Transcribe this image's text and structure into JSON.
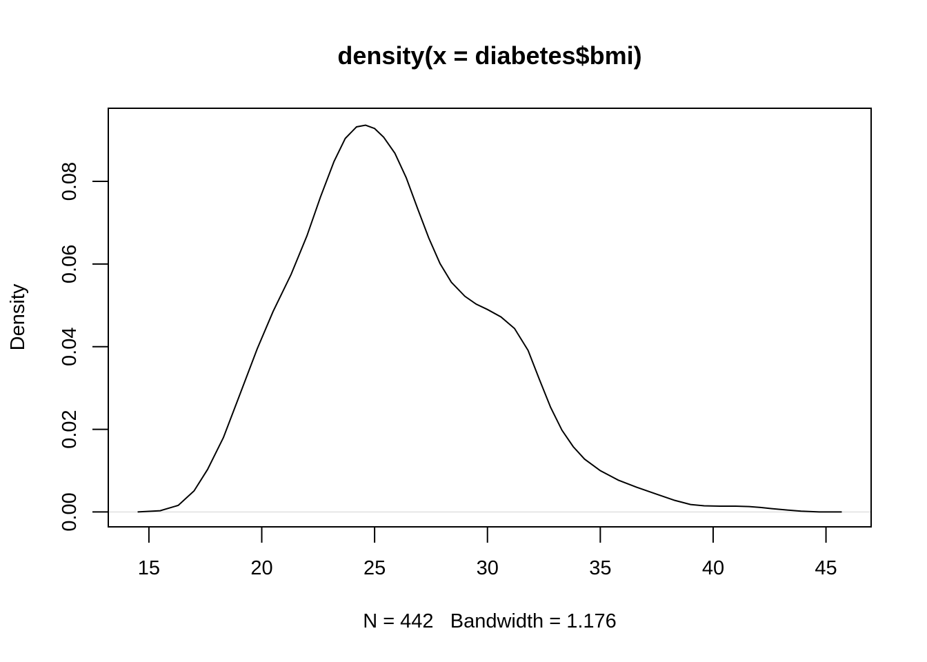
{
  "chart_data": {
    "type": "line",
    "title": "density(x = diabetes$bmi)",
    "xlabel": "N = 442   Bandwidth = 1.176",
    "ylabel": "Density",
    "xlim": [
      13.2,
      47.0
    ],
    "ylim": [
      -0.0036,
      0.0977
    ],
    "x_ticks": [
      15,
      20,
      25,
      30,
      35,
      40,
      45
    ],
    "x_tick_labels": [
      "15",
      "20",
      "25",
      "30",
      "35",
      "40",
      "45"
    ],
    "y_ticks": [
      0.0,
      0.02,
      0.04,
      0.06,
      0.08
    ],
    "y_tick_labels": [
      "0.00",
      "0.02",
      "0.04",
      "0.06",
      "0.08"
    ],
    "zero_line": true,
    "colors": {
      "line": "#000000",
      "zero_line": "#d3d3d3",
      "background": "#ffffff"
    },
    "series": [
      {
        "name": "density",
        "x": [
          14.5,
          15.5,
          16.3,
          17.0,
          17.6,
          18.3,
          19.0,
          19.8,
          20.5,
          21.3,
          22.0,
          22.6,
          23.2,
          23.7,
          24.2,
          24.6,
          25.0,
          25.4,
          25.9,
          26.4,
          26.9,
          27.4,
          27.9,
          28.4,
          29.0,
          29.5,
          30.0,
          30.6,
          31.2,
          31.8,
          32.3,
          32.8,
          33.3,
          33.8,
          34.3,
          35.0,
          35.8,
          36.6,
          37.5,
          38.3,
          39.0,
          39.6,
          40.3,
          41.0,
          41.6,
          42.1,
          42.6,
          43.2,
          43.9,
          44.7,
          45.7
        ],
        "y": [
          0.0,
          0.0003,
          0.0016,
          0.0051,
          0.0103,
          0.018,
          0.028,
          0.0395,
          0.0485,
          0.0575,
          0.0668,
          0.0762,
          0.0848,
          0.0904,
          0.0932,
          0.0936,
          0.0928,
          0.0907,
          0.0868,
          0.0809,
          0.0735,
          0.0663,
          0.0601,
          0.0556,
          0.0522,
          0.0503,
          0.049,
          0.0472,
          0.0444,
          0.0391,
          0.0321,
          0.0253,
          0.0198,
          0.0158,
          0.0128,
          0.01,
          0.0077,
          0.006,
          0.0043,
          0.0028,
          0.0018,
          0.0015,
          0.0014,
          0.0014,
          0.0013,
          0.0011,
          0.0008,
          0.0005,
          0.0002,
          0.0,
          0.0
        ]
      }
    ]
  }
}
